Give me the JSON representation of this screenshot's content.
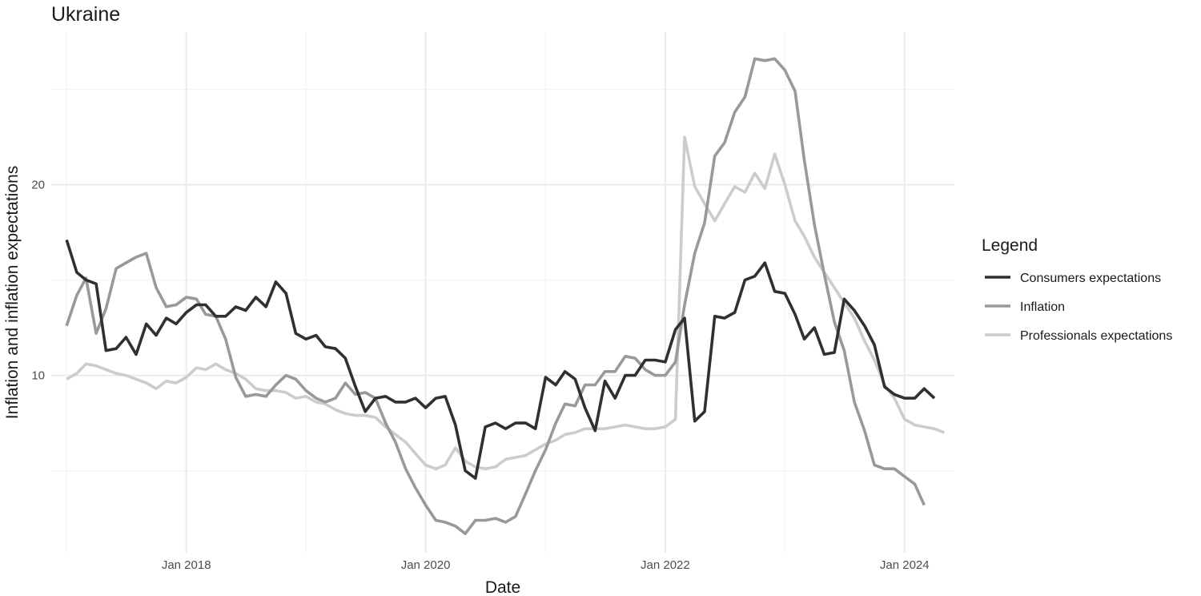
{
  "chart_data": {
    "type": "line",
    "title": "Ukraine",
    "xlabel": "Date",
    "ylabel": "Inflation and inflation expectations",
    "x_range": [
      "2016-11-15",
      "2024-06-01"
    ],
    "ylim": [
      0.7,
      28.0
    ],
    "x_ticks": [
      {
        "date": "2018-01-01",
        "label": "Jan 2018"
      },
      {
        "date": "2020-01-01",
        "label": "Jan 2020"
      },
      {
        "date": "2022-01-01",
        "label": "Jan 2022"
      },
      {
        "date": "2024-01-01",
        "label": "Jan 2024"
      }
    ],
    "x_minor_ticks": [
      "2017-01-01",
      "2019-01-01",
      "2021-01-01",
      "2023-01-01"
    ],
    "y_ticks": [
      {
        "value": 10,
        "label": "10"
      },
      {
        "value": 20,
        "label": "20"
      }
    ],
    "y_minor_ticks": [
      5,
      15,
      25
    ],
    "grid": true,
    "legend": {
      "title": "Legend",
      "position": "right"
    },
    "series": [
      {
        "name": "Consumers expectations",
        "color": "#303030",
        "points": [
          [
            "2017-01-01",
            17.1
          ],
          [
            "2017-02-01",
            15.4
          ],
          [
            "2017-03-01",
            15.0
          ],
          [
            "2017-04-01",
            14.8
          ],
          [
            "2017-05-01",
            11.3
          ],
          [
            "2017-06-01",
            11.4
          ],
          [
            "2017-07-01",
            12.0
          ],
          [
            "2017-08-01",
            11.1
          ],
          [
            "2017-09-01",
            12.7
          ],
          [
            "2017-10-01",
            12.1
          ],
          [
            "2017-11-01",
            13.0
          ],
          [
            "2017-12-01",
            12.7
          ],
          [
            "2018-01-01",
            13.3
          ],
          [
            "2018-02-01",
            13.7
          ],
          [
            "2018-03-01",
            13.7
          ],
          [
            "2018-04-01",
            13.1
          ],
          [
            "2018-05-01",
            13.1
          ],
          [
            "2018-06-01",
            13.6
          ],
          [
            "2018-07-01",
            13.4
          ],
          [
            "2018-08-01",
            14.1
          ],
          [
            "2018-09-01",
            13.6
          ],
          [
            "2018-10-01",
            14.9
          ],
          [
            "2018-11-01",
            14.3
          ],
          [
            "2018-12-01",
            12.2
          ],
          [
            "2019-01-01",
            11.9
          ],
          [
            "2019-02-01",
            12.1
          ],
          [
            "2019-03-01",
            11.5
          ],
          [
            "2019-04-01",
            11.4
          ],
          [
            "2019-05-01",
            10.9
          ],
          [
            "2019-06-01",
            9.4
          ],
          [
            "2019-07-01",
            8.1
          ],
          [
            "2019-08-01",
            8.8
          ],
          [
            "2019-09-01",
            8.9
          ],
          [
            "2019-10-01",
            8.6
          ],
          [
            "2019-11-01",
            8.6
          ],
          [
            "2019-12-01",
            8.8
          ],
          [
            "2020-01-01",
            8.3
          ],
          [
            "2020-02-01",
            8.8
          ],
          [
            "2020-03-01",
            8.9
          ],
          [
            "2020-04-01",
            7.4
          ],
          [
            "2020-05-01",
            5.0
          ],
          [
            "2020-06-01",
            4.6
          ],
          [
            "2020-07-01",
            7.3
          ],
          [
            "2020-08-01",
            7.5
          ],
          [
            "2020-09-01",
            7.2
          ],
          [
            "2020-10-01",
            7.5
          ],
          [
            "2020-11-01",
            7.5
          ],
          [
            "2020-12-01",
            7.2
          ],
          [
            "2021-01-01",
            9.9
          ],
          [
            "2021-02-01",
            9.5
          ],
          [
            "2021-03-01",
            10.2
          ],
          [
            "2021-04-01",
            9.8
          ],
          [
            "2021-05-01",
            8.3
          ],
          [
            "2021-06-01",
            7.1
          ],
          [
            "2021-07-01",
            9.7
          ],
          [
            "2021-08-01",
            8.8
          ],
          [
            "2021-09-01",
            10.0
          ],
          [
            "2021-10-01",
            10.0
          ],
          [
            "2021-11-01",
            10.8
          ],
          [
            "2021-12-01",
            10.8
          ],
          [
            "2022-01-01",
            10.7
          ],
          [
            "2022-02-01",
            12.4
          ],
          [
            "2022-03-01",
            13.0
          ],
          [
            "2022-04-01",
            7.6
          ],
          [
            "2022-05-01",
            8.1
          ],
          [
            "2022-06-01",
            13.1
          ],
          [
            "2022-07-01",
            13.0
          ],
          [
            "2022-08-01",
            13.3
          ],
          [
            "2022-09-01",
            15.0
          ],
          [
            "2022-10-01",
            15.2
          ],
          [
            "2022-11-01",
            15.9
          ],
          [
            "2022-12-01",
            14.4
          ],
          [
            "2023-01-01",
            14.3
          ],
          [
            "2023-02-01",
            13.2
          ],
          [
            "2023-03-01",
            11.9
          ],
          [
            "2023-04-01",
            12.5
          ],
          [
            "2023-05-01",
            11.1
          ],
          [
            "2023-06-01",
            11.2
          ],
          [
            "2023-07-01",
            14.0
          ],
          [
            "2023-08-01",
            13.4
          ],
          [
            "2023-09-01",
            12.6
          ],
          [
            "2023-10-01",
            11.6
          ],
          [
            "2023-11-01",
            9.4
          ],
          [
            "2023-12-01",
            9.0
          ],
          [
            "2024-01-01",
            8.8
          ],
          [
            "2024-02-01",
            8.8
          ],
          [
            "2024-03-01",
            9.3
          ],
          [
            "2024-04-01",
            8.8
          ]
        ]
      },
      {
        "name": "Inflation",
        "color": "#999999",
        "points": [
          [
            "2017-01-01",
            12.6
          ],
          [
            "2017-02-01",
            14.2
          ],
          [
            "2017-03-01",
            15.1
          ],
          [
            "2017-04-01",
            12.2
          ],
          [
            "2017-05-01",
            13.5
          ],
          [
            "2017-06-01",
            15.6
          ],
          [
            "2017-07-01",
            15.9
          ],
          [
            "2017-08-01",
            16.2
          ],
          [
            "2017-09-01",
            16.4
          ],
          [
            "2017-10-01",
            14.6
          ],
          [
            "2017-11-01",
            13.6
          ],
          [
            "2017-12-01",
            13.7
          ],
          [
            "2018-01-01",
            14.1
          ],
          [
            "2018-02-01",
            14.0
          ],
          [
            "2018-03-01",
            13.2
          ],
          [
            "2018-04-01",
            13.1
          ],
          [
            "2018-05-01",
            11.9
          ],
          [
            "2018-06-01",
            9.9
          ],
          [
            "2018-07-01",
            8.9
          ],
          [
            "2018-08-01",
            9.0
          ],
          [
            "2018-09-01",
            8.9
          ],
          [
            "2018-10-01",
            9.5
          ],
          [
            "2018-11-01",
            10.0
          ],
          [
            "2018-12-01",
            9.8
          ],
          [
            "2019-01-01",
            9.2
          ],
          [
            "2019-02-01",
            8.8
          ],
          [
            "2019-03-01",
            8.6
          ],
          [
            "2019-04-01",
            8.8
          ],
          [
            "2019-05-01",
            9.6
          ],
          [
            "2019-06-01",
            9.0
          ],
          [
            "2019-07-01",
            9.1
          ],
          [
            "2019-08-01",
            8.8
          ],
          [
            "2019-09-01",
            7.5
          ],
          [
            "2019-10-01",
            6.5
          ],
          [
            "2019-11-01",
            5.1
          ],
          [
            "2019-12-01",
            4.1
          ],
          [
            "2020-01-01",
            3.2
          ],
          [
            "2020-02-01",
            2.4
          ],
          [
            "2020-03-01",
            2.3
          ],
          [
            "2020-04-01",
            2.1
          ],
          [
            "2020-05-01",
            1.7
          ],
          [
            "2020-06-01",
            2.4
          ],
          [
            "2020-07-01",
            2.4
          ],
          [
            "2020-08-01",
            2.5
          ],
          [
            "2020-09-01",
            2.3
          ],
          [
            "2020-10-01",
            2.6
          ],
          [
            "2020-11-01",
            3.8
          ],
          [
            "2020-12-01",
            5.0
          ],
          [
            "2021-01-01",
            6.1
          ],
          [
            "2021-02-01",
            7.5
          ],
          [
            "2021-03-01",
            8.5
          ],
          [
            "2021-04-01",
            8.4
          ],
          [
            "2021-05-01",
            9.5
          ],
          [
            "2021-06-01",
            9.5
          ],
          [
            "2021-07-01",
            10.2
          ],
          [
            "2021-08-01",
            10.2
          ],
          [
            "2021-09-01",
            11.0
          ],
          [
            "2021-10-01",
            10.9
          ],
          [
            "2021-11-01",
            10.3
          ],
          [
            "2021-12-01",
            10.0
          ],
          [
            "2022-01-01",
            10.0
          ],
          [
            "2022-02-01",
            10.7
          ],
          [
            "2022-03-01",
            13.7
          ],
          [
            "2022-04-01",
            16.4
          ],
          [
            "2022-05-01",
            18.0
          ],
          [
            "2022-06-01",
            21.5
          ],
          [
            "2022-07-01",
            22.2
          ],
          [
            "2022-08-01",
            23.8
          ],
          [
            "2022-09-01",
            24.6
          ],
          [
            "2022-10-01",
            26.6
          ],
          [
            "2022-11-01",
            26.5
          ],
          [
            "2022-12-01",
            26.6
          ],
          [
            "2023-01-01",
            26.0
          ],
          [
            "2023-02-01",
            24.9
          ],
          [
            "2023-03-01",
            21.3
          ],
          [
            "2023-04-01",
            17.9
          ],
          [
            "2023-05-01",
            15.3
          ],
          [
            "2023-06-01",
            12.8
          ],
          [
            "2023-07-01",
            11.3
          ],
          [
            "2023-08-01",
            8.6
          ],
          [
            "2023-09-01",
            7.1
          ],
          [
            "2023-10-01",
            5.3
          ],
          [
            "2023-11-01",
            5.1
          ],
          [
            "2023-12-01",
            5.1
          ],
          [
            "2024-01-01",
            4.7
          ],
          [
            "2024-02-01",
            4.3
          ],
          [
            "2024-03-01",
            3.2
          ]
        ]
      },
      {
        "name": "Professionals expectations",
        "color": "#cccccc",
        "points": [
          [
            "2017-01-01",
            9.8
          ],
          [
            "2017-02-01",
            10.1
          ],
          [
            "2017-03-01",
            10.6
          ],
          [
            "2017-04-01",
            10.5
          ],
          [
            "2017-05-01",
            10.3
          ],
          [
            "2017-06-01",
            10.1
          ],
          [
            "2017-07-01",
            10.0
          ],
          [
            "2017-08-01",
            9.8
          ],
          [
            "2017-09-01",
            9.6
          ],
          [
            "2017-10-01",
            9.3
          ],
          [
            "2017-11-01",
            9.7
          ],
          [
            "2017-12-01",
            9.6
          ],
          [
            "2018-01-01",
            9.9
          ],
          [
            "2018-02-01",
            10.4
          ],
          [
            "2018-03-01",
            10.3
          ],
          [
            "2018-04-01",
            10.6
          ],
          [
            "2018-05-01",
            10.3
          ],
          [
            "2018-06-01",
            10.1
          ],
          [
            "2018-07-01",
            9.8
          ],
          [
            "2018-08-01",
            9.3
          ],
          [
            "2018-09-01",
            9.2
          ],
          [
            "2018-10-01",
            9.2
          ],
          [
            "2018-11-01",
            9.1
          ],
          [
            "2018-12-01",
            8.8
          ],
          [
            "2019-01-01",
            8.9
          ],
          [
            "2019-02-01",
            8.6
          ],
          [
            "2019-03-01",
            8.5
          ],
          [
            "2019-04-01",
            8.2
          ],
          [
            "2019-05-01",
            8.0
          ],
          [
            "2019-06-01",
            7.9
          ],
          [
            "2019-07-01",
            7.9
          ],
          [
            "2019-08-01",
            7.8
          ],
          [
            "2019-09-01",
            7.3
          ],
          [
            "2019-10-01",
            6.9
          ],
          [
            "2019-11-01",
            6.5
          ],
          [
            "2019-12-01",
            5.9
          ],
          [
            "2020-01-01",
            5.3
          ],
          [
            "2020-02-01",
            5.1
          ],
          [
            "2020-03-01",
            5.3
          ],
          [
            "2020-04-01",
            6.2
          ],
          [
            "2020-05-01",
            5.5
          ],
          [
            "2020-06-01",
            5.2
          ],
          [
            "2020-07-01",
            5.1
          ],
          [
            "2020-08-01",
            5.2
          ],
          [
            "2020-09-01",
            5.6
          ],
          [
            "2020-10-01",
            5.7
          ],
          [
            "2020-11-01",
            5.8
          ],
          [
            "2020-12-01",
            6.1
          ],
          [
            "2021-01-01",
            6.4
          ],
          [
            "2021-02-01",
            6.6
          ],
          [
            "2021-03-01",
            6.9
          ],
          [
            "2021-04-01",
            7.0
          ],
          [
            "2021-05-01",
            7.2
          ],
          [
            "2021-06-01",
            7.2
          ],
          [
            "2021-07-01",
            7.2
          ],
          [
            "2021-08-01",
            7.3
          ],
          [
            "2021-09-01",
            7.4
          ],
          [
            "2021-10-01",
            7.3
          ],
          [
            "2021-11-01",
            7.2
          ],
          [
            "2021-12-01",
            7.2
          ],
          [
            "2022-01-01",
            7.3
          ],
          [
            "2022-02-01",
            7.7
          ],
          [
            "2022-03-01",
            22.5
          ],
          [
            "2022-04-01",
            19.9
          ],
          [
            "2022-05-01",
            19.0
          ],
          [
            "2022-06-01",
            18.1
          ],
          [
            "2022-07-01",
            19.0
          ],
          [
            "2022-08-01",
            19.9
          ],
          [
            "2022-09-01",
            19.6
          ],
          [
            "2022-10-01",
            20.6
          ],
          [
            "2022-11-01",
            19.8
          ],
          [
            "2022-12-01",
            21.6
          ],
          [
            "2023-01-01",
            20.0
          ],
          [
            "2023-02-01",
            18.1
          ],
          [
            "2023-03-01",
            17.3
          ],
          [
            "2023-04-01",
            16.2
          ],
          [
            "2023-05-01",
            15.4
          ],
          [
            "2023-06-01",
            14.6
          ],
          [
            "2023-07-01",
            13.8
          ],
          [
            "2023-08-01",
            13.0
          ],
          [
            "2023-09-01",
            11.8
          ],
          [
            "2023-10-01",
            10.8
          ],
          [
            "2023-11-01",
            9.5
          ],
          [
            "2023-12-01",
            8.8
          ],
          [
            "2024-01-01",
            7.7
          ],
          [
            "2024-02-01",
            7.4
          ],
          [
            "2024-03-01",
            7.3
          ],
          [
            "2024-04-01",
            7.2
          ],
          [
            "2024-05-01",
            7.0
          ]
        ]
      }
    ]
  }
}
